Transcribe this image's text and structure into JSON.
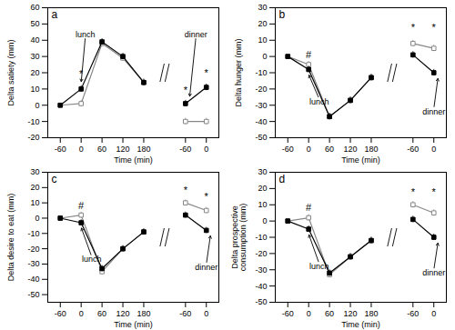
{
  "chart_data": [
    {
      "type": "line",
      "title": "a",
      "xlabel": "Time (min)",
      "ylabel": "Delta satiety (mm)",
      "categories": [
        "-60",
        "0",
        "60",
        "120",
        "180",
        null,
        "-60",
        "0"
      ],
      "ylim": [
        -20,
        60
      ],
      "yticks": [
        -20,
        -10,
        0,
        10,
        20,
        30,
        40,
        50,
        60
      ],
      "grid": false,
      "series": [
        {
          "color": "black",
          "marker": "square",
          "values": [
            0,
            10,
            39,
            30,
            14,
            null,
            1,
            11
          ],
          "errors": [
            1,
            2,
            2,
            2,
            2,
            null,
            2,
            2
          ]
        },
        {
          "color": "#888888",
          "marker": "open_square",
          "values": [
            0,
            1,
            38,
            29,
            14,
            null,
            -10,
            -10
          ],
          "errors": [
            1,
            2,
            2,
            2,
            2,
            null,
            2,
            2
          ]
        }
      ],
      "annotations": [
        {
          "text": "*",
          "x": 1,
          "y": 17
        },
        {
          "text": "*",
          "x": 6,
          "y": 7
        },
        {
          "text": "*",
          "x": 7,
          "y": 18
        },
        {
          "text": "lunch",
          "x": 1.2,
          "y": 42,
          "arrow_x": 1.0,
          "arrow_y": 14
        },
        {
          "text": "dinner",
          "x": 6.5,
          "y": 42,
          "arrow_x": 6.2,
          "arrow_y": 5
        }
      ]
    },
    {
      "type": "line",
      "title": "b",
      "xlabel": "Time (min)",
      "ylabel": "Delta hunger (mm)",
      "categories": [
        "-60",
        "0",
        "60",
        "120",
        "180",
        null,
        "-60",
        "0"
      ],
      "ylim": [
        -50,
        30
      ],
      "yticks": [
        -50,
        -40,
        -30,
        -20,
        -10,
        0,
        10,
        20,
        30
      ],
      "grid": false,
      "series": [
        {
          "color": "black",
          "marker": "square",
          "values": [
            0,
            -8,
            -37,
            -27,
            -13,
            null,
            1,
            -10
          ],
          "errors": [
            1,
            2,
            2,
            2,
            2,
            null,
            2,
            2
          ]
        },
        {
          "color": "#888888",
          "marker": "open_square",
          "values": [
            0,
            -5,
            -37,
            -27,
            -13,
            null,
            8,
            5
          ],
          "errors": [
            1,
            2,
            2,
            2,
            2,
            null,
            2,
            2
          ]
        }
      ],
      "annotations": [
        {
          "text": "#",
          "x": 1,
          "y": -1
        },
        {
          "text": "*",
          "x": 6,
          "y": 16
        },
        {
          "text": "*",
          "x": 7,
          "y": 16
        },
        {
          "text": "lunch",
          "x": 1.5,
          "y": -26,
          "arrow_x": 1.0,
          "arrow_y": -11
        },
        {
          "text": "dinner",
          "x": 7.0,
          "y": -32,
          "arrow_x": 7.2,
          "arrow_y": -13
        }
      ]
    },
    {
      "type": "line",
      "title": "c",
      "xlabel": "Time (min)",
      "ylabel": "Delta desire to eat (mm)",
      "categories": [
        "-60",
        "0",
        "60",
        "120",
        "180",
        null,
        "-60",
        "0"
      ],
      "ylim": [
        -55,
        30
      ],
      "yticks": [
        -50,
        -40,
        -30,
        -20,
        -10,
        0,
        10,
        20,
        30
      ],
      "grid": false,
      "series": [
        {
          "color": "black",
          "marker": "square",
          "values": [
            0,
            -3,
            -33,
            -20,
            -9,
            null,
            2,
            -8
          ],
          "errors": [
            1,
            2,
            2,
            2,
            2,
            null,
            2,
            2
          ]
        },
        {
          "color": "#888888",
          "marker": "open_square",
          "values": [
            0,
            2,
            -35,
            -20,
            -9,
            null,
            10,
            5
          ],
          "errors": [
            1,
            2,
            2,
            2,
            2,
            null,
            2,
            2
          ]
        }
      ],
      "annotations": [
        {
          "text": "#",
          "x": 1,
          "y": 6
        },
        {
          "text": "*",
          "x": 6,
          "y": 16
        },
        {
          "text": "*",
          "x": 7,
          "y": 12
        },
        {
          "text": "lunch",
          "x": 1.5,
          "y": -25,
          "arrow_x": 1.0,
          "arrow_y": -6
        },
        {
          "text": "dinner",
          "x": 7.0,
          "y": -30,
          "arrow_x": 7.2,
          "arrow_y": -11
        }
      ]
    },
    {
      "type": "line",
      "title": "d",
      "xlabel": "Time (min)",
      "ylabel": "Delta prospective\nconsumption (mm)",
      "categories": [
        "-60",
        "0",
        "60",
        "120",
        "180",
        null,
        "-60",
        "0"
      ],
      "ylim": [
        -50,
        30
      ],
      "yticks": [
        -50,
        -40,
        -30,
        -20,
        -10,
        0,
        10,
        20,
        30
      ],
      "grid": false,
      "series": [
        {
          "color": "black",
          "marker": "square",
          "values": [
            0,
            -5,
            -32,
            -22,
            -12,
            null,
            1,
            -10
          ],
          "errors": [
            1,
            2,
            2,
            2,
            2,
            null,
            2,
            2
          ]
        },
        {
          "color": "#888888",
          "marker": "open_square",
          "values": [
            0,
            2,
            -33,
            -22,
            -12,
            null,
            10,
            5
          ],
          "errors": [
            1,
            2,
            2,
            2,
            2,
            null,
            2,
            2
          ]
        }
      ],
      "annotations": [
        {
          "text": "#",
          "x": 1,
          "y": 6
        },
        {
          "text": "*",
          "x": 6,
          "y": 16
        },
        {
          "text": "*",
          "x": 7,
          "y": 16
        },
        {
          "text": "lunch",
          "x": 1.5,
          "y": -26,
          "arrow_x": 1.0,
          "arrow_y": -8
        },
        {
          "text": "dinner",
          "x": 7.0,
          "y": -30,
          "arrow_x": 7.2,
          "arrow_y": -13
        }
      ]
    }
  ]
}
